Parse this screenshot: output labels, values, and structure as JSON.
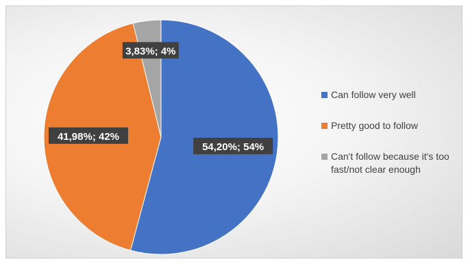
{
  "chart_data": {
    "type": "pie",
    "title": "",
    "slices": [
      {
        "name": "Can follow very well",
        "percent": 54.2,
        "label": "54,20%; 54%",
        "color": "#4472C4"
      },
      {
        "name": "Pretty good to follow",
        "percent": 41.98,
        "label": "41,98%; 42%",
        "color": "#ED7D31"
      },
      {
        "name": "Can't follow because it's too fast/not clear enough",
        "percent": 3.83,
        "label": "3,83%; 4%",
        "color": "#A5A5A5"
      }
    ],
    "legend_position": "right"
  }
}
